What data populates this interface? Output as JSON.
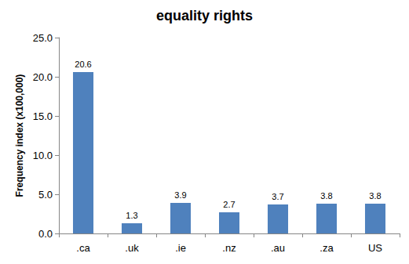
{
  "chart_data": {
    "type": "bar",
    "title": "equality rights",
    "y_label": "Frequency index (x100,000)",
    "categories": [
      ".ca",
      ".uk",
      ".ie",
      ".nz",
      ".au",
      ".za",
      "US"
    ],
    "values": [
      20.6,
      1.3,
      3.9,
      2.7,
      3.7,
      3.8,
      3.8
    ],
    "color": "#4f81bd",
    "ylim": [
      0,
      25
    ],
    "yticks": [
      {
        "value": 0,
        "label": "0.0"
      },
      {
        "value": 5,
        "label": "5.0"
      },
      {
        "value": 10,
        "label": "10.0"
      },
      {
        "value": 15,
        "label": "15.0"
      },
      {
        "value": 20,
        "label": "20.0"
      },
      {
        "value": 25,
        "label": "25.0"
      }
    ],
    "grid": false,
    "data_labels": true
  }
}
